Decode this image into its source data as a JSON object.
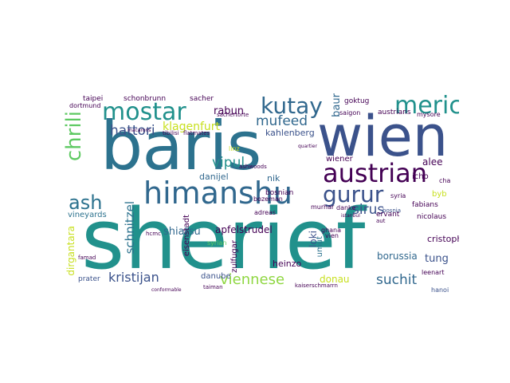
{
  "palette": {
    "dark_purple": "#440154",
    "indigo": "#3b528b",
    "blue": "#31688e",
    "teal": "#21918c",
    "teal_dark": "#2c728e",
    "green": "#35b779",
    "green_light": "#5ec962",
    "lime": "#90d743",
    "yellow": "#c8e020",
    "bright_yellow": "#fde725"
  },
  "words": [
    "sherief",
    "baris",
    "wien",
    "himanshu",
    "austrian",
    "mostar",
    "kutay",
    "meric",
    "gurur",
    "chrili",
    "ash",
    "hattori",
    "klagenfurt",
    "rabun",
    "mufeed",
    "baur",
    "kahlenberg",
    "vipul",
    "sirus",
    "schnitzel",
    "apfelstrudel",
    "shiatsu",
    "viennese",
    "kristijan",
    "suchit",
    "donau",
    "tung",
    "cristoph",
    "borussia",
    "heinzo",
    "dirgantara",
    "danube",
    "prater",
    "vineyards",
    "umut",
    "loki",
    "danijel",
    "eisenstadt",
    "bosnian",
    "nik",
    "zulfugar",
    "wiener",
    "alee",
    "icho",
    "byb",
    "fabians",
    "nicolaus",
    "leenart",
    "hanoi",
    "goktug",
    "austrians",
    "saigon",
    "schonbrunn",
    "sacher",
    "taipei",
    "dortmund",
    "bozeman",
    "murhar",
    "danke",
    "adreas",
    "syrian",
    "ghana",
    "vien",
    "kaiserschmarrn",
    "hcmc",
    "cha",
    "syria",
    "ervant",
    "bosnia",
    "ashwoods",
    "sachertorte",
    "tibilisi",
    "flatmates",
    "linz",
    "mysore",
    "quartier",
    "istanbul",
    "aut",
    "macarons",
    "famad",
    "conformable",
    "taiman"
  ]
}
